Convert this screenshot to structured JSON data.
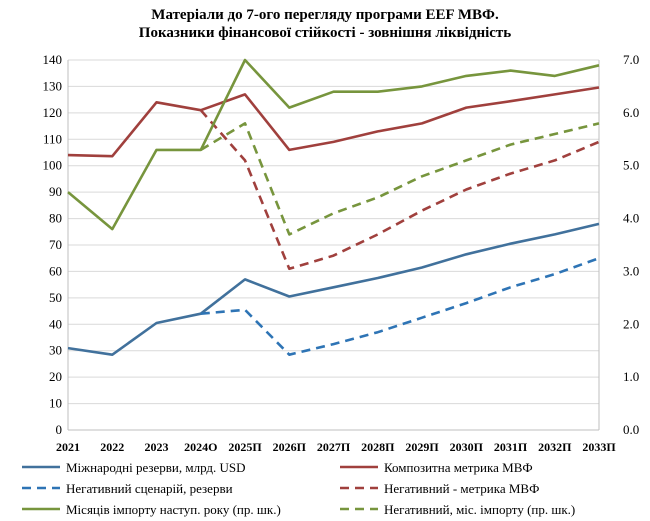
{
  "chart_data": {
    "type": "line",
    "title": "Матеріали до 7-ого перегляду програми EEF МВФ.",
    "subtitle": "Показники фінансової стійкості - зовнішня ліквідність",
    "categories": [
      "2021",
      "2022",
      "2023",
      "2024О",
      "2025П",
      "2026П",
      "2027П",
      "2028П",
      "2029П",
      "2030П",
      "2031П",
      "2032П",
      "2033П"
    ],
    "y_left": {
      "min": 0,
      "max": 140,
      "step": 10
    },
    "y_right": {
      "min": 0,
      "max": 7,
      "step": 1
    },
    "grid": true,
    "legend_position": "bottom",
    "series": [
      {
        "name": "Міжнародні резерви, млрд. USD",
        "axis": "left",
        "color": "#41719c",
        "dash": "solid",
        "values": [
          31,
          28.5,
          40.5,
          44,
          57,
          50.5,
          54,
          57.5,
          61.5,
          66.5,
          70.5,
          74,
          78
        ]
      },
      {
        "name": "Композитна метрика МВФ",
        "axis": "right",
        "color": "#a0403d",
        "dash": "solid",
        "values": [
          5.2,
          5.18,
          6.2,
          6.05,
          6.35,
          5.3,
          5.45,
          5.65,
          5.8,
          6.1,
          6.22,
          6.35,
          6.48
        ]
      },
      {
        "name": "Негативний сценарій, резерви",
        "axis": "left",
        "color": "#2e74b5",
        "dash": "dash",
        "values": [
          null,
          null,
          null,
          44,
          45.5,
          28.5,
          32.5,
          37,
          42.5,
          48,
          54,
          59,
          65
        ]
      },
      {
        "name": "Негативний - метрика МВФ",
        "axis": "right",
        "color": "#a0403d",
        "dash": "dash",
        "values": [
          null,
          null,
          null,
          6.05,
          5.1,
          3.05,
          3.3,
          3.7,
          4.15,
          4.55,
          4.85,
          5.1,
          5.45
        ]
      },
      {
        "name": "Місяців імпорту наступ. року (пр. шк.)",
        "axis": "right",
        "color": "#77953d",
        "dash": "solid",
        "values": [
          4.5,
          3.8,
          5.3,
          5.3,
          7.0,
          6.1,
          6.4,
          6.4,
          6.5,
          6.7,
          6.8,
          6.7,
          6.9
        ]
      },
      {
        "name": "Негативний,  міс. імпорту (пр. шк.)",
        "axis": "right",
        "color": "#77953d",
        "dash": "dash",
        "values": [
          null,
          null,
          null,
          5.3,
          5.8,
          3.7,
          4.1,
          4.4,
          4.8,
          5.1,
          5.4,
          5.6,
          5.8
        ]
      }
    ],
    "legend_order": [
      0,
      1,
      2,
      3,
      4,
      5
    ]
  }
}
